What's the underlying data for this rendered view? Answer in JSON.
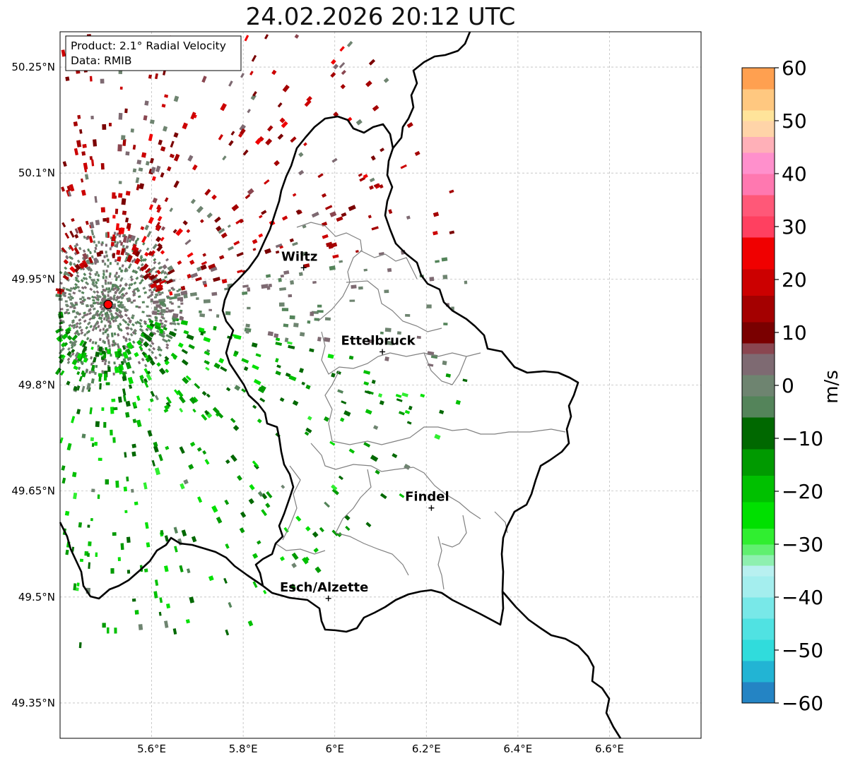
{
  "title": "24.02.2026 20:12 UTC",
  "info_box": {
    "product_line": "Product: 2.1° Radial Velocity",
    "data_line": "Data: RMIB"
  },
  "map": {
    "lon_range": [
      5.4,
      6.8
    ],
    "lat_range": [
      49.3,
      50.3
    ],
    "lon_ticks": [
      {
        "value": 5.6,
        "label": "5.6°E"
      },
      {
        "value": 5.8,
        "label": "5.8°E"
      },
      {
        "value": 6.0,
        "label": "6°E"
      },
      {
        "value": 6.2,
        "label": "6.2°E"
      },
      {
        "value": 6.4,
        "label": "6.4°E"
      },
      {
        "value": 6.6,
        "label": "6.6°E"
      }
    ],
    "lat_ticks": [
      {
        "value": 50.25,
        "label": "50.25°N"
      },
      {
        "value": 50.1,
        "label": "50.1°N"
      },
      {
        "value": 49.95,
        "label": "49.95°N"
      },
      {
        "value": 49.8,
        "label": "49.8°N"
      },
      {
        "value": 49.65,
        "label": "49.65°N"
      },
      {
        "value": 49.5,
        "label": "49.5°N"
      },
      {
        "value": 49.35,
        "label": "49.35°N"
      }
    ],
    "radar_site": {
      "lon": 5.505,
      "lat": 49.914,
      "color": "#ff0000"
    },
    "cities": [
      {
        "name": "Wiltz",
        "lon": 5.932,
        "lat": 49.966
      },
      {
        "name": "Ettelbruck",
        "lon": 6.104,
        "lat": 49.847
      },
      {
        "name": "Findel",
        "lon": 6.211,
        "lat": 49.626
      },
      {
        "name": "Esch/Alzette",
        "lon": 5.986,
        "lat": 49.498
      }
    ]
  },
  "colorbar": {
    "label": "m/s",
    "min": -60,
    "max": 60,
    "ticks": [
      {
        "value": 60,
        "label": "60"
      },
      {
        "value": 50,
        "label": "50"
      },
      {
        "value": 40,
        "label": "40"
      },
      {
        "value": 30,
        "label": "30"
      },
      {
        "value": 20,
        "label": "20"
      },
      {
        "value": 10,
        "label": "10"
      },
      {
        "value": 0,
        "label": "0"
      },
      {
        "value": -10,
        "label": "−10"
      },
      {
        "value": -20,
        "label": "−20"
      },
      {
        "value": -30,
        "label": "−30"
      },
      {
        "value": -40,
        "label": "−40"
      },
      {
        "value": -50,
        "label": "−50"
      },
      {
        "value": -60,
        "label": "−60"
      }
    ],
    "color_stops": [
      {
        "from": -60,
        "to": -56,
        "color": "#2484c4"
      },
      {
        "from": -56,
        "to": -52,
        "color": "#22b4d4"
      },
      {
        "from": -52,
        "to": -48,
        "color": "#30dcdc"
      },
      {
        "from": -48,
        "to": -44,
        "color": "#50e2e2"
      },
      {
        "from": -44,
        "to": -40,
        "color": "#78e8e8"
      },
      {
        "from": -40,
        "to": -36,
        "color": "#a4eeee"
      },
      {
        "from": -36,
        "to": -34,
        "color": "#b8f0f0"
      },
      {
        "from": -34,
        "to": -32,
        "color": "#8ef0b0"
      },
      {
        "from": -32,
        "to": -30,
        "color": "#60f070"
      },
      {
        "from": -30,
        "to": -27,
        "color": "#30ee30"
      },
      {
        "from": -27,
        "to": -22,
        "color": "#00e000"
      },
      {
        "from": -22,
        "to": -17,
        "color": "#00c000"
      },
      {
        "from": -17,
        "to": -12,
        "color": "#009a00"
      },
      {
        "from": -12,
        "to": -6,
        "color": "#006800"
      },
      {
        "from": -6,
        "to": -2,
        "color": "#54845a"
      },
      {
        "from": -2,
        "to": 2,
        "color": "#6e8470"
      },
      {
        "from": 2,
        "to": 6,
        "color": "#7e6a72"
      },
      {
        "from": 6,
        "to": 8,
        "color": "#8a4650"
      },
      {
        "from": 8,
        "to": 12,
        "color": "#7a0000"
      },
      {
        "from": 12,
        "to": 17,
        "color": "#a40000"
      },
      {
        "from": 17,
        "to": 22,
        "color": "#cc0000"
      },
      {
        "from": 22,
        "to": 28,
        "color": "#f00000"
      },
      {
        "from": 28,
        "to": 32,
        "color": "#ff4060"
      },
      {
        "from": 32,
        "to": 36,
        "color": "#ff5878"
      },
      {
        "from": 36,
        "to": 40,
        "color": "#ff78b0"
      },
      {
        "from": 40,
        "to": 44,
        "color": "#ff90cc"
      },
      {
        "from": 44,
        "to": 47,
        "color": "#ffb0b8"
      },
      {
        "from": 47,
        "to": 50,
        "color": "#ffd4a8"
      },
      {
        "from": 50,
        "to": 52,
        "color": "#ffe49a"
      },
      {
        "from": 52,
        "to": 56,
        "color": "#ffc880"
      },
      {
        "from": 56,
        "to": 60,
        "color": "#ffa050"
      }
    ]
  }
}
